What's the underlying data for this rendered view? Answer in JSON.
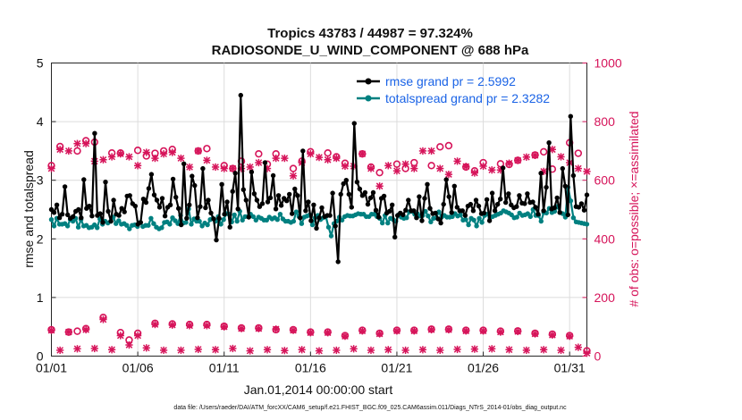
{
  "chart_data": {
    "type": "line",
    "title": "Tropics 43783 / 44987 = 97.324%",
    "subtitle": "RADIOSONDE_U_WIND_COMPONENT @ 688 hPa",
    "xlabel": "Jan.01,2014 00:00:00 start",
    "ylabel_left": "rmse and totalspread",
    "ylabel_right": "# of obs: o=possible; ×=assimilated",
    "footer": "data file: /Users/raeder/DAI/ATM_forcXX/CAM6_setup/f.e21.FHIST_BGC.f09_025.CAM6assim.011/Diags_NTrS_2014-01/obs_diag_output.nc",
    "xlim": [
      0,
      31
    ],
    "ylim_left": [
      0,
      5
    ],
    "ylim_right": [
      0,
      1000
    ],
    "x_ticks": [
      0,
      5,
      10,
      15,
      20,
      25,
      30
    ],
    "x_tick_labels": [
      "01/01",
      "01/06",
      "01/11",
      "01/16",
      "01/21",
      "01/26",
      "01/31"
    ],
    "y_ticks_left": [
      "0",
      "1",
      "2",
      "3",
      "4",
      "5"
    ],
    "y_ticks_right": [
      "0",
      "200",
      "400",
      "600",
      "800",
      "1000"
    ],
    "grid": true,
    "legend_position": "top-right",
    "series": [
      {
        "name": "rmse grand pr = 2.5992",
        "axis": "left",
        "color": "#000000",
        "values": [
          2.5,
          2.45,
          2.58,
          2.36,
          2.42,
          2.89,
          2.41,
          2.35,
          2.38,
          2.47,
          2.5,
          2.36,
          3.01,
          2.52,
          2.56,
          2.39,
          3.8,
          2.4,
          2.43,
          2.28,
          2.97,
          2.47,
          2.3,
          2.66,
          2.42,
          2.4,
          2.52,
          2.46,
          2.73,
          2.74,
          2.6,
          2.56,
          2.25,
          2.28,
          2.68,
          2.62,
          2.86,
          3.1,
          2.75,
          2.66,
          2.54,
          2.69,
          2.39,
          2.54,
          2.58,
          3.02,
          2.71,
          2.52,
          2.24,
          3.28,
          2.35,
          2.58,
          3.07,
          2.91,
          2.36,
          2.55,
          3.2,
          2.53,
          2.66,
          2.44,
          2.34,
          1.98,
          2.35,
          2.93,
          2.42,
          2.63,
          2.2,
          2.81,
          3.12,
          2.51,
          4.45,
          2.84,
          2.66,
          2.37,
          3.14,
          2.77,
          2.66,
          2.55,
          2.6,
          3.3,
          2.63,
          2.7,
          3.08,
          2.51,
          2.74,
          2.57,
          2.69,
          2.65,
          2.76,
          2.43,
          2.85,
          2.74,
          2.36,
          3.5,
          2.48,
          2.63,
          2.31,
          2.58,
          2.18,
          2.36,
          2.53,
          2.38,
          2.4,
          2.4,
          2.78,
          2.22,
          1.61,
          2.76,
          2.94,
          3.0,
          2.76,
          2.54,
          3.97,
          2.97,
          2.85,
          2.74,
          2.79,
          2.59,
          2.7,
          2.79,
          2.49,
          2.37,
          2.69,
          2.73,
          2.44,
          2.47,
          2.58,
          2.03,
          2.4,
          2.44,
          2.41,
          2.49,
          2.66,
          2.48,
          2.48,
          2.36,
          2.72,
          2.31,
          2.69,
          2.93,
          2.52,
          2.43,
          2.44,
          2.34,
          2.27,
          2.59,
          3.01,
          2.72,
          2.45,
          2.9,
          2.54,
          2.48,
          2.48,
          2.4,
          2.56,
          2.59,
          2.48,
          2.66,
          2.56,
          2.43,
          2.44,
          2.67,
          2.31,
          2.78,
          2.48,
          2.59,
          2.68,
          3.21,
          2.62,
          2.77,
          2.58,
          2.53,
          2.55,
          2.74,
          2.61,
          2.6,
          2.77,
          2.62,
          2.63,
          2.54,
          2.42,
          3.12,
          2.48,
          2.88,
          3.64,
          2.51,
          2.53,
          2.7,
          2.45,
          3.2,
          2.9,
          2.41,
          4.09,
          3.08,
          2.55,
          2.54,
          2.6,
          2.49,
          2.75
        ]
      },
      {
        "name": "totalspread grand pr = 2.3282",
        "axis": "left",
        "color": "#008080",
        "values": [
          2.33,
          2.22,
          2.35,
          2.25,
          2.25,
          2.26,
          2.22,
          2.33,
          2.3,
          2.35,
          2.2,
          2.33,
          2.22,
          2.23,
          2.19,
          2.2,
          2.24,
          2.19,
          2.34,
          2.25,
          2.3,
          2.27,
          2.3,
          2.37,
          2.26,
          2.31,
          2.25,
          2.26,
          2.23,
          2.17,
          2.23,
          2.24,
          2.21,
          2.28,
          2.21,
          2.23,
          2.23,
          2.35,
          2.26,
          2.2,
          2.17,
          2.19,
          2.28,
          2.29,
          2.25,
          2.36,
          2.31,
          2.26,
          2.4,
          2.27,
          2.28,
          2.51,
          2.25,
          2.34,
          2.3,
          2.3,
          2.22,
          2.27,
          2.24,
          2.33,
          2.35,
          2.3,
          2.38,
          2.25,
          2.33,
          2.43,
          2.42,
          2.29,
          2.41,
          2.3,
          2.47,
          2.32,
          2.38,
          2.38,
          2.42,
          2.38,
          2.32,
          2.37,
          2.35,
          2.32,
          2.32,
          2.37,
          2.34,
          2.36,
          2.33,
          2.42,
          2.34,
          2.3,
          2.3,
          2.28,
          2.3,
          2.46,
          2.38,
          2.26,
          2.37,
          2.39,
          2.41,
          2.24,
          2.36,
          2.4,
          2.33,
          2.36,
          2.38,
          2.2,
          2.05,
          2.26,
          2.3,
          2.37,
          2.32,
          2.38,
          2.4,
          2.39,
          2.39,
          2.41,
          2.43,
          2.42,
          2.42,
          2.38,
          2.38,
          2.42,
          2.42,
          2.38,
          2.35,
          2.27,
          2.4,
          2.27,
          2.35,
          2.33,
          2.3,
          2.41,
          2.37,
          2.35,
          2.36,
          2.46,
          2.47,
          2.42,
          2.43,
          2.39,
          2.4,
          2.47,
          2.39,
          2.29,
          2.35,
          2.36,
          2.46,
          2.37,
          2.4,
          2.37,
          2.37,
          2.38,
          2.43,
          2.39,
          2.41,
          2.32,
          2.33,
          2.24,
          2.35,
          2.32,
          2.22,
          2.35,
          2.28,
          2.4,
          2.42,
          2.36,
          2.38,
          2.4,
          2.42,
          2.44,
          2.48,
          2.46,
          2.44,
          2.41,
          2.36,
          2.37,
          2.44,
          2.4,
          2.41,
          2.43,
          2.38,
          2.5,
          2.4,
          2.4,
          2.3,
          2.45,
          2.44,
          2.52,
          2.45,
          2.47,
          2.55,
          2.45,
          2.43,
          2.37,
          2.88,
          2.65,
          2.36,
          2.29,
          2.28,
          2.27,
          2.26,
          2.25
        ]
      }
    ],
    "obs_series": [
      {
        "name": "possible (upper)",
        "axis": "right",
        "marker": "o",
        "color": "#d6145a",
        "x": [
          0,
          0.5,
          1.5,
          2,
          2.5,
          3.5,
          4,
          5,
          5.5,
          6,
          6.5,
          7,
          8.5,
          9,
          10,
          10.5,
          11,
          12,
          12.5,
          13,
          14,
          14.5,
          15,
          16,
          16.5,
          17,
          18,
          18.5,
          19,
          20,
          20.5,
          21,
          22,
          22.5,
          23,
          24,
          24.5,
          25,
          26,
          26.5,
          27,
          28,
          28.5,
          29,
          30,
          30.5
        ],
        "values": [
          650,
          715,
          700,
          735,
          730,
          693,
          693,
          702,
          683,
          692,
          700,
          705,
          700,
          708,
          650,
          640,
          665,
          690,
          655,
          690,
          640,
          665,
          697,
          693,
          680,
          658,
          690,
          645,
          626,
          655,
          640,
          660,
          650,
          714,
          718,
          645,
          632,
          660,
          656,
          654,
          668,
          686,
          697,
          638,
          728,
          692
        ]
      },
      {
        "name": "assimilated (upper)",
        "axis": "right",
        "marker": "x",
        "color": "#d6145a",
        "x": [
          0,
          0.5,
          1,
          1.5,
          2,
          2.5,
          3,
          3.5,
          4,
          4.5,
          5,
          5.5,
          6,
          6.5,
          7,
          7.5,
          8,
          8.5,
          9,
          9.5,
          10,
          10.5,
          11,
          11.5,
          12,
          12.5,
          13,
          13.5,
          14,
          14.5,
          15,
          15.5,
          16,
          16.5,
          17,
          17.5,
          18,
          18.5,
          19,
          19.5,
          20,
          20.5,
          21,
          21.5,
          22,
          22.5,
          23,
          23.5,
          24,
          24.5,
          25,
          25.5,
          26,
          26.5,
          27,
          27.5,
          28,
          28.5,
          29,
          29.5,
          30,
          30.5,
          31
        ],
        "values": [
          640,
          705,
          700,
          725,
          725,
          665,
          670,
          680,
          690,
          680,
          650,
          695,
          675,
          690,
          695,
          675,
          645,
          700,
          668,
          645,
          640,
          640,
          640,
          645,
          660,
          640,
          675,
          675,
          615,
          660,
          690,
          678,
          670,
          675,
          648,
          648,
          690,
          640,
          580,
          650,
          632,
          655,
          640,
          700,
          700,
          640,
          620,
          665,
          647,
          625,
          648,
          635,
          635,
          658,
          668,
          679,
          685,
          630,
          705,
          680,
          660,
          640,
          630
        ]
      },
      {
        "name": "possible (lower)",
        "axis": "right",
        "marker": "o",
        "color": "#d6145a",
        "x": [
          0,
          1,
          1.5,
          2,
          3,
          4,
          4.5,
          5,
          6,
          7,
          8,
          9,
          10,
          11,
          12,
          13,
          14,
          15,
          16,
          17,
          18,
          19,
          20,
          21,
          22,
          23,
          24,
          25,
          26,
          27,
          28,
          29,
          30,
          31
        ],
        "values": [
          90,
          82,
          85,
          94,
          132,
          80,
          55,
          78,
          112,
          110,
          108,
          108,
          102,
          96,
          96,
          90,
          90,
          82,
          82,
          70,
          88,
          78,
          88,
          88,
          92,
          92,
          88,
          88,
          85,
          86,
          78,
          75,
          70,
          18
        ]
      },
      {
        "name": "assimilated (lower)",
        "axis": "right",
        "marker": "x",
        "color": "#d6145a",
        "x": [
          0,
          0.5,
          1,
          1.5,
          2,
          2.5,
          3,
          3.5,
          4,
          4.5,
          5,
          5.5,
          6,
          6.5,
          7,
          7.5,
          8,
          8.5,
          9,
          9.5,
          10,
          10.5,
          11,
          11.5,
          12,
          12.5,
          13,
          13.5,
          14,
          14.5,
          15,
          15.5,
          16,
          16.5,
          17,
          17.5,
          18,
          18.5,
          19,
          19.5,
          20,
          20.5,
          21,
          21.5,
          22,
          22.5,
          23,
          23.5,
          24,
          24.5,
          25,
          25.5,
          26,
          26.5,
          27,
          27.5,
          28,
          28.5,
          29,
          29.5,
          30,
          30.5,
          31
        ],
        "values": [
          88,
          20,
          82,
          25,
          90,
          26,
          125,
          22,
          70,
          38,
          70,
          28,
          108,
          20,
          106,
          20,
          104,
          23,
          104,
          22,
          100,
          26,
          94,
          18,
          94,
          22,
          92,
          19,
          88,
          22,
          80,
          18,
          80,
          20,
          68,
          25,
          86,
          20,
          76,
          22,
          86,
          20,
          86,
          22,
          90,
          20,
          90,
          23,
          86,
          24,
          86,
          25,
          82,
          22,
          84,
          20,
          76,
          22,
          72,
          20,
          68,
          30,
          10
        ]
      }
    ]
  }
}
